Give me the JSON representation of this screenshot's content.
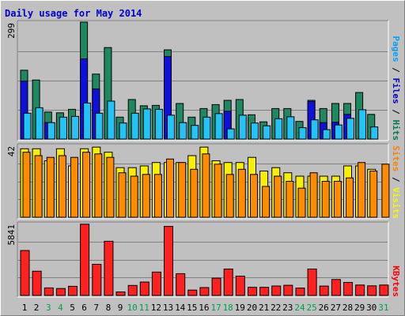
{
  "chart_data": {
    "type": "bar",
    "title": "Daily usage for May 2014",
    "categories": [
      "1",
      "2",
      "3",
      "4",
      "5",
      "6",
      "7",
      "8",
      "9",
      "10",
      "11",
      "12",
      "13",
      "14",
      "15",
      "16",
      "17",
      "18",
      "19",
      "20",
      "21",
      "22",
      "23",
      "24",
      "25",
      "26",
      "27",
      "28",
      "29",
      "30",
      "31"
    ],
    "weekend_days": [
      3,
      4,
      10,
      11,
      17,
      18,
      24,
      25,
      31
    ],
    "panels": [
      {
        "id": "hits",
        "max_label": "299",
        "ylim": [
          0,
          299
        ],
        "legend": [
          "Pages",
          "Files",
          "Hits"
        ],
        "legend_colors": [
          "#00a0ff",
          "#0000cc",
          "#007a50"
        ],
        "series": [
          {
            "name": "Hits",
            "color": "#1e8860",
            "values": [
              176,
              151,
              69,
              67,
              76,
              299,
              166,
              234,
              56,
              101,
              85,
              86,
              228,
              91,
              56,
              78,
              88,
              99,
              101,
              62,
              44,
              78,
              78,
              45,
              99,
              78,
              91,
              91,
              119,
              63,
              0
            ]
          },
          {
            "name": "Files",
            "color": "#1010dd",
            "values": [
              148,
              0,
              42,
              0,
              0,
              205,
              128,
              0,
              0,
              0,
              0,
              0,
              211,
              0,
              0,
              0,
              0,
              71,
              0,
              0,
              0,
              0,
              0,
              0,
              96,
              42,
              43,
              63,
              0,
              0,
              0
            ]
          },
          {
            "name": "Pages",
            "color": "#22c4f8",
            "values": [
              66,
              80,
              42,
              56,
              58,
              92,
              66,
              97,
              41,
              66,
              77,
              76,
              61,
              42,
              35,
              56,
              65,
              26,
              61,
              41,
              34,
              52,
              57,
              29,
              49,
              24,
              36,
              53,
              75,
              31,
              0
            ]
          }
        ]
      },
      {
        "id": "visits",
        "max_label": "42",
        "ylim": [
          0,
          42
        ],
        "legend": [
          "Sites",
          "Visits"
        ],
        "legend_colors": [
          "#ff8000",
          "#f8f800"
        ],
        "series": [
          {
            "name": "Visits",
            "color": "#f8f000",
            "values": [
              40,
              40,
              33,
              40,
              30,
              40,
              41,
              38,
              29,
              29,
              30,
              32,
              32,
              32,
              36,
              41,
              33,
              32,
              32,
              35,
              27,
              29,
              26,
              24,
              24,
              24,
              24,
              30,
              30,
              28,
              0
            ]
          },
          {
            "name": "Sites",
            "color": "#ff8c00",
            "values": [
              38,
              36,
              35,
              36,
              35,
              38,
              37,
              35,
              26,
              24,
              25,
              25,
              34,
              32,
              28,
              37,
              31,
              25,
              28,
              25,
              18,
              24,
              21,
              17,
              26,
              21,
              21,
              23,
              32,
              27,
              31
            ]
          }
        ]
      },
      {
        "id": "kbytes",
        "max_label": "5841",
        "ylim": [
          0,
          5841
        ],
        "legend": [
          "KBytes"
        ],
        "legend_colors": [
          "#ff0000"
        ],
        "series": [
          {
            "name": "KBytes",
            "color": "#ff2020",
            "values": [
              3652,
              1973,
              613,
              568,
              744,
              5790,
              2534,
              4403,
              288,
              818,
              1090,
              1900,
              5609,
              1774,
              435,
              639,
              1403,
              2143,
              1574,
              659,
              662,
              770,
              829,
              603,
              2152,
              767,
              1294,
              1061,
              846,
              784,
              845
            ]
          }
        ]
      }
    ],
    "colors": {
      "title": "#0000cc",
      "weekday_label": "#000000",
      "weekend_label": "#00a050"
    }
  }
}
